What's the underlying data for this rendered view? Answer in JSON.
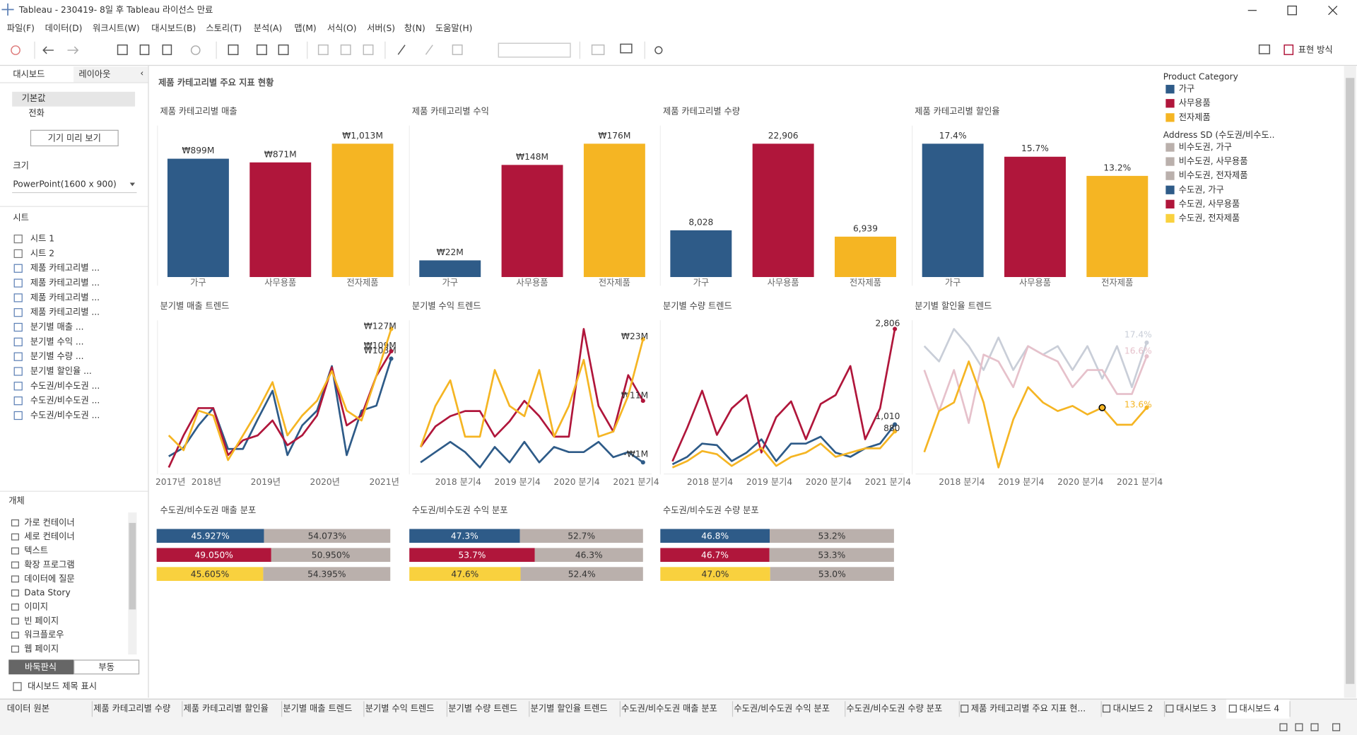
{
  "window": {
    "title": "Tableau - 230419- 8일 후 Tableau 라이선스 만료"
  },
  "menu": [
    "파일(F)",
    "데이터(D)",
    "워크시트(W)",
    "대시보드(B)",
    "스토리(T)",
    "분석(A)",
    "맵(M)",
    "서식(O)",
    "서버(S)",
    "창(N)",
    "도움말(H)"
  ],
  "toolbar": {
    "show_me": "표현 방식"
  },
  "sidebar": {
    "tabs": [
      "대시보드",
      "레이아웃"
    ],
    "devices": [
      "기본값",
      "전화"
    ],
    "preview_button": "기기 미리 보기",
    "size_label": "크기",
    "size_value": "PowerPoint(1600 x 900)",
    "sheets_label": "시트",
    "sheets": [
      "시트 1",
      "시트 2",
      "제품 카테고리별 ...",
      "제품 카테고리별 ...",
      "제품 카테고리별 ...",
      "제품 카테고리별 ...",
      "분기별 매출 ...",
      "분기별 수익 ...",
      "분기별 수량 ...",
      "분기별 할인율 ...",
      "수도권/비수도권 ...",
      "수도권/비수도권 ...",
      "수도권/비수도권 ..."
    ],
    "objects_label": "개체",
    "objects": [
      "가로 컨테이너",
      "세로 컨테이너",
      "텍스트",
      "확장 프로그램",
      "데이터에 질문",
      "Data Story",
      "이미지",
      "빈 페이지",
      "워크플로우",
      "웹 페이지"
    ],
    "modes": [
      "바둑판식",
      "부동"
    ],
    "show_title": "대시보드 제목 표시"
  },
  "dashboard": {
    "title": "제품 카테고리별 주요 지표 현황"
  },
  "chart_data": [
    {
      "type": "bar",
      "title": "제품 카테고리별 매출",
      "categories": [
        "가구",
        "사무용품",
        "전자제품"
      ],
      "values": [
        899,
        871,
        1013
      ],
      "value_labels": [
        "₩899M",
        "₩871M",
        "₩1,013M"
      ],
      "colors": [
        "#2e5b88",
        "#b0163b",
        "#f5b523"
      ]
    },
    {
      "type": "bar",
      "title": "제품 카테고리별 수익",
      "categories": [
        "가구",
        "사무용품",
        "전자제품"
      ],
      "values": [
        22,
        148,
        176
      ],
      "value_labels": [
        "₩22M",
        "₩148M",
        "₩176M"
      ],
      "colors": [
        "#2e5b88",
        "#b0163b",
        "#f5b523"
      ]
    },
    {
      "type": "bar",
      "title": "제품 카테고리별 수량",
      "categories": [
        "가구",
        "사무용품",
        "전자제품"
      ],
      "values": [
        8028,
        22906,
        6939
      ],
      "value_labels": [
        "8,028",
        "22,906",
        "6,939"
      ],
      "colors": [
        "#2e5b88",
        "#b0163b",
        "#f5b523"
      ]
    },
    {
      "type": "bar",
      "title": "제품 카테고리별 할인율",
      "categories": [
        "가구",
        "사무용품",
        "전자제품"
      ],
      "values": [
        17.4,
        15.7,
        13.2
      ],
      "value_labels": [
        "17.4%",
        "15.7%",
        "13.2%"
      ],
      "colors": [
        "#2e5b88",
        "#b0163b",
        "#f5b523"
      ]
    },
    {
      "type": "line",
      "title": "분기별 매출 트렌드",
      "categories": [
        "2017년",
        null,
        null,
        "2018년",
        null,
        null,
        null,
        "2019년",
        null,
        null,
        null,
        "2020년",
        null,
        null,
        null,
        "2021년"
      ],
      "series": [
        {
          "name": "가구",
          "color": "#2e5b88",
          "values": [
            24,
            31,
            49,
            63,
            30,
            30,
            54,
            77,
            25,
            49,
            61,
            97,
            25,
            61,
            65,
            103
          ],
          "value_labels": [
            null,
            null,
            null,
            null,
            null,
            null,
            null,
            null,
            null,
            null,
            null,
            null,
            null,
            null,
            null,
            "₩103M"
          ]
        },
        {
          "name": "사무용품",
          "color": "#b0163b",
          "values": [
            15,
            41,
            63,
            63,
            25,
            37,
            41,
            53,
            33,
            41,
            57,
            96,
            49,
            57,
            89,
            109
          ],
          "value_labels": [
            null,
            null,
            null,
            null,
            null,
            null,
            null,
            null,
            null,
            null,
            null,
            null,
            null,
            null,
            null,
            "₩109M"
          ]
        },
        {
          "name": "전자제품",
          "color": "#f5b523",
          "values": [
            41,
            29,
            61,
            57,
            21,
            41,
            61,
            84,
            41,
            57,
            69,
            93,
            61,
            53,
            89,
            127
          ],
          "value_labels": [
            null,
            null,
            null,
            null,
            null,
            null,
            null,
            null,
            null,
            null,
            null,
            null,
            null,
            null,
            null,
            "₩127M"
          ]
        }
      ]
    },
    {
      "type": "line",
      "title": "분기별 수익 트렌드",
      "categories": [
        null,
        null,
        null,
        "2018 분기4",
        null,
        null,
        null,
        "2019 분기4",
        null,
        null,
        null,
        "2020 분기4",
        null,
        null,
        null,
        "2021 분기4"
      ],
      "series": [
        {
          "name": "가구",
          "color": "#2e5b88",
          "values": [
            -1,
            1,
            3,
            1,
            -2,
            2,
            -1,
            3,
            -1,
            2,
            1,
            1,
            3,
            0,
            1,
            -1
          ],
          "value_labels": [
            null,
            null,
            null,
            null,
            null,
            null,
            null,
            null,
            null,
            null,
            null,
            null,
            null,
            null,
            null,
            "-₩1M"
          ]
        },
        {
          "name": "사무용품",
          "color": "#b0163b",
          "values": [
            2,
            6,
            8,
            9,
            9,
            4,
            7,
            11,
            8,
            4,
            4,
            25,
            10,
            5,
            16,
            11
          ],
          "value_labels": [
            null,
            null,
            null,
            null,
            null,
            null,
            null,
            null,
            null,
            null,
            null,
            null,
            null,
            null,
            null,
            "₩11M"
          ]
        },
        {
          "name": "전자제품",
          "color": "#f5b523",
          "values": [
            2,
            10,
            15,
            4,
            4,
            17,
            10,
            8,
            17,
            4,
            10,
            19,
            4,
            5,
            12,
            23
          ],
          "value_labels": [
            null,
            null,
            null,
            null,
            null,
            null,
            null,
            null,
            null,
            null,
            null,
            null,
            null,
            null,
            null,
            "₩23M"
          ]
        }
      ]
    },
    {
      "type": "line",
      "title": "분기별 수량 트렌드",
      "categories": [
        null,
        null,
        null,
        "2018 분기4",
        null,
        null,
        null,
        "2019 분기4",
        null,
        null,
        null,
        "2020 분기4",
        null,
        null,
        null,
        "2021 분기4"
      ],
      "series": [
        {
          "name": "가구",
          "color": "#2e5b88",
          "values": [
            260,
            400,
            650,
            620,
            320,
            480,
            730,
            320,
            650,
            650,
            780,
            480,
            400,
            560,
            650,
            1010
          ],
          "value_labels": [
            null,
            null,
            null,
            null,
            null,
            null,
            null,
            null,
            null,
            null,
            null,
            null,
            null,
            null,
            null,
            "1,010"
          ]
        },
        {
          "name": "사무용품",
          "color": "#b0163b",
          "values": [
            316,
            947,
            1644,
            814,
            1312,
            1561,
            482,
            1146,
            1445,
            731,
            1395,
            1561,
            2109,
            731,
            1312,
            2806
          ],
          "value_labels": [
            null,
            null,
            null,
            null,
            null,
            null,
            null,
            null,
            null,
            null,
            null,
            null,
            null,
            null,
            null,
            "2,806"
          ]
        },
        {
          "name": "전자제품",
          "color": "#f5b523",
          "values": [
            200,
            320,
            510,
            450,
            230,
            400,
            570,
            230,
            400,
            480,
            650,
            400,
            480,
            560,
            560,
            880
          ],
          "value_labels": [
            null,
            null,
            null,
            null,
            null,
            null,
            null,
            null,
            null,
            null,
            null,
            null,
            null,
            null,
            null,
            "880"
          ]
        }
      ]
    },
    {
      "type": "line",
      "title": "분기별 할인율 트렌드",
      "categories": [
        null,
        null,
        null,
        "2018 분기4",
        null,
        null,
        null,
        "2019 분기4",
        null,
        null,
        null,
        "2020 분기4",
        null,
        null,
        null,
        "2021 분기4"
      ],
      "series": [
        {
          "name": "가구",
          "color": "#c9ced8",
          "values": [
            17.2,
            16.3,
            18.2,
            17.2,
            15.8,
            17.7,
            15.8,
            17.2,
            16.7,
            17.2,
            15.8,
            17.2,
            15.3,
            17.2,
            14.8,
            17.4
          ],
          "value_labels": [
            null,
            null,
            null,
            null,
            null,
            null,
            null,
            null,
            null,
            null,
            null,
            null,
            null,
            null,
            null,
            "17.4%"
          ]
        },
        {
          "name": "사무용품",
          "color": "#e6c1cb",
          "values": [
            15.8,
            13.4,
            15.8,
            12.7,
            16.7,
            16.3,
            14.8,
            17.2,
            16.7,
            16.3,
            14.8,
            15.8,
            15.8,
            14.4,
            14.4,
            16.6
          ],
          "value_labels": [
            null,
            null,
            null,
            null,
            null,
            null,
            null,
            null,
            null,
            null,
            null,
            null,
            null,
            null,
            null,
            "16.6%"
          ]
        },
        {
          "name": "전자제품",
          "color": "#f5b523",
          "highlight": 12,
          "values": [
            11.0,
            13.4,
            13.9,
            16.3,
            13.9,
            10.1,
            12.9,
            14.8,
            13.9,
            13.4,
            13.7,
            13.2,
            13.6,
            12.6,
            12.6,
            13.6
          ],
          "value_labels": [
            null,
            null,
            null,
            null,
            null,
            null,
            null,
            null,
            null,
            null,
            null,
            null,
            null,
            null,
            null,
            "13.6%"
          ]
        }
      ]
    },
    {
      "type": "stacked_bar_100",
      "title": "수도권/비수도권 매출 분포",
      "series": [
        {
          "colors": [
            "#2e5b88",
            "#b0163b",
            "#f9d13e"
          ],
          "values": [
            45.927,
            49.05,
            45.605
          ],
          "value_labels": [
            "45.927%",
            "49.050%",
            "45.605%"
          ]
        },
        {
          "color": "#bab0ac",
          "values": [
            54.073,
            50.95,
            54.395
          ],
          "value_labels": [
            "54.073%",
            "50.950%",
            "54.395%"
          ]
        }
      ]
    },
    {
      "type": "stacked_bar_100",
      "title": "수도권/비수도권 수익 분포",
      "series": [
        {
          "colors": [
            "#2e5b88",
            "#b0163b",
            "#f9d13e"
          ],
          "values": [
            47.3,
            53.7,
            47.6
          ],
          "value_labels": [
            "47.3%",
            "53.7%",
            "47.6%"
          ]
        },
        {
          "color": "#bab0ac",
          "values": [
            52.7,
            46.3,
            52.4
          ],
          "value_labels": [
            "52.7%",
            "46.3%",
            "52.4%"
          ]
        }
      ]
    },
    {
      "type": "stacked_bar_100",
      "title": "수도권/비수도권 수량 분포",
      "series": [
        {
          "colors": [
            "#2e5b88",
            "#b0163b",
            "#f9d13e"
          ],
          "values": [
            46.8,
            46.7,
            47
          ],
          "value_labels": [
            "46.8%",
            "46.7%",
            "47.0%"
          ]
        },
        {
          "color": "#bab0ac",
          "values": [
            53.2,
            53.3,
            53
          ],
          "value_labels": [
            "53.2%",
            "53.3%",
            "53.0%"
          ]
        }
      ]
    }
  ],
  "legend": [
    {
      "title": "Product Category",
      "items": [
        {
          "name": "가구",
          "color": "#2e5b88"
        },
        {
          "name": "사무용품",
          "color": "#b0163b"
        },
        {
          "name": "전자제품",
          "color": "#f5b523"
        }
      ]
    },
    {
      "title": "Address SD (수도권/비수도..",
      "items": [
        {
          "name": "비수도권, 가구",
          "color": "#bab0ac"
        },
        {
          "name": "비수도권, 사무용품",
          "color": "#bab0ac"
        },
        {
          "name": "비수도권, 전자제품",
          "color": "#bab0ac"
        },
        {
          "name": "수도권, 가구",
          "color": "#2e5b88"
        },
        {
          "name": "수도권, 사무용품",
          "color": "#b0163b"
        },
        {
          "name": "수도권, 전자제품",
          "color": "#f9d13e"
        }
      ]
    }
  ],
  "tabs": [
    "데이터 원본",
    "제품 카테고리별 수량",
    "제품 카테고리별 할인율",
    "분기별 매출 트렌드",
    "분기별 수익 트렌드",
    "분기별 수량 트렌드",
    "분기별 할인율 트렌드",
    "수도권/비수도권 매출 분포",
    "수도권/비수도권 수익 분포",
    "수도권/비수도권 수량 분포",
    "제품 카테고리별 주요 지표 현...",
    "대시보드 2",
    "대시보드 3",
    "대시보드 4"
  ]
}
